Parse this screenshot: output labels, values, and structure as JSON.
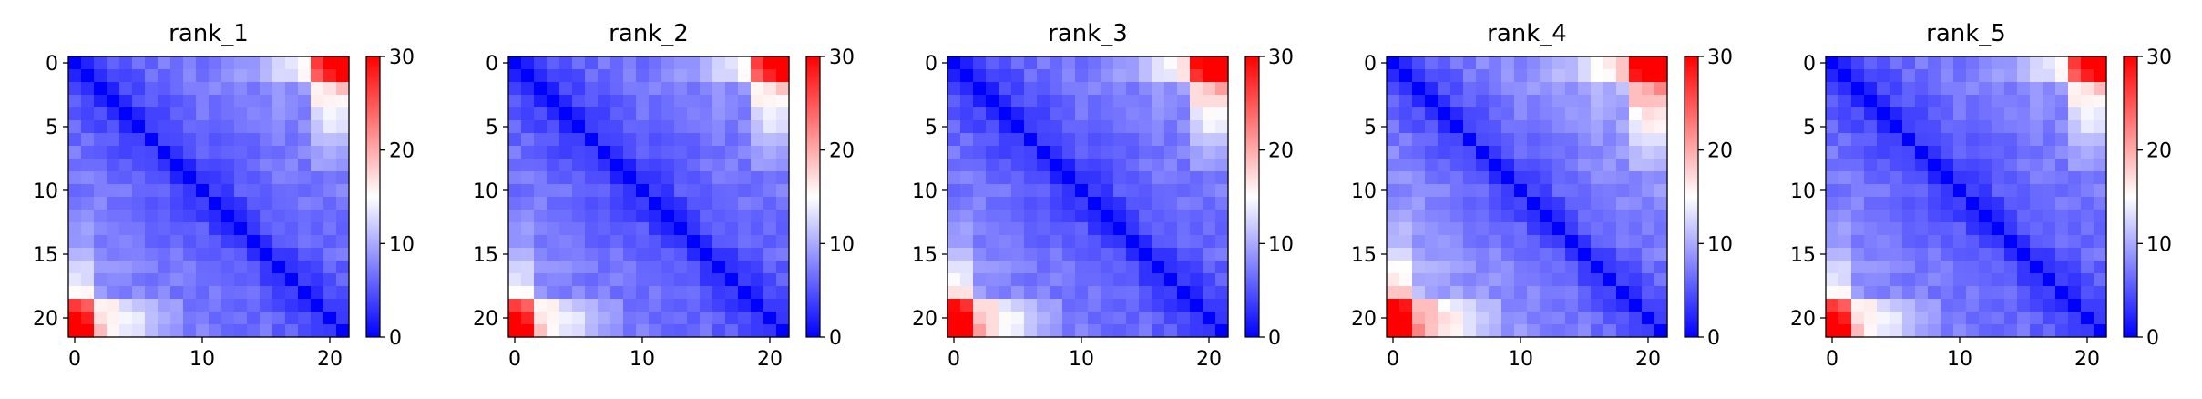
{
  "chart_data": [
    {
      "type": "heatmap",
      "title": "rank_1",
      "n": 22,
      "xlim": [
        0,
        21
      ],
      "ylim": [
        21,
        0
      ],
      "xticks": [
        0,
        10,
        20
      ],
      "yticks": [
        0,
        5,
        10,
        15,
        20
      ],
      "colorbar": {
        "range": [
          0,
          30
        ],
        "ticks": [
          0,
          10,
          20,
          30
        ],
        "colormap": "bwr"
      },
      "profile": [
        0,
        3.2,
        4.2,
        5.0,
        5.6,
        6.0,
        6.3,
        6.6,
        6.8,
        7.0,
        7.2,
        7.4,
        7.6,
        7.8,
        8.0,
        8.3,
        8.7,
        9.2,
        10.0,
        11.5,
        14.0,
        17.0
      ],
      "edge_boost": {
        "top": 8,
        "bottom": 10
      }
    },
    {
      "type": "heatmap",
      "title": "rank_2",
      "n": 22,
      "xlim": [
        0,
        21
      ],
      "ylim": [
        21,
        0
      ],
      "xticks": [
        0,
        10,
        20
      ],
      "yticks": [
        0,
        5,
        10,
        15,
        20
      ],
      "colorbar": {
        "range": [
          0,
          30
        ],
        "ticks": [
          0,
          10,
          20,
          30
        ],
        "colormap": "bwr"
      },
      "profile": [
        0,
        3.0,
        4.0,
        4.8,
        5.4,
        5.8,
        6.1,
        6.4,
        6.6,
        6.8,
        7.0,
        7.2,
        7.4,
        7.6,
        7.8,
        8.1,
        8.5,
        9.0,
        9.8,
        11.2,
        13.5,
        16.0
      ],
      "edge_boost": {
        "top": 8,
        "bottom": 10
      }
    },
    {
      "type": "heatmap",
      "title": "rank_3",
      "n": 22,
      "xlim": [
        0,
        21
      ],
      "ylim": [
        21,
        0
      ],
      "xticks": [
        0,
        10,
        20
      ],
      "yticks": [
        0,
        5,
        10,
        15,
        20
      ],
      "colorbar": {
        "range": [
          0,
          30
        ],
        "ticks": [
          0,
          10,
          20,
          30
        ],
        "colormap": "bwr"
      },
      "profile": [
        0,
        3.0,
        4.0,
        4.8,
        5.4,
        5.9,
        6.2,
        6.5,
        6.7,
        6.9,
        7.1,
        7.3,
        7.5,
        7.8,
        8.1,
        8.5,
        9.0,
        9.8,
        11.0,
        12.5,
        15.0,
        18.0
      ],
      "edge_boost": {
        "top": 9,
        "bottom": 11
      }
    },
    {
      "type": "heatmap",
      "title": "rank_4",
      "n": 22,
      "xlim": [
        0,
        21
      ],
      "ylim": [
        21,
        0
      ],
      "xticks": [
        0,
        10,
        20
      ],
      "yticks": [
        0,
        5,
        10,
        15,
        20
      ],
      "colorbar": {
        "range": [
          0,
          30
        ],
        "ticks": [
          0,
          10,
          20,
          30
        ],
        "colormap": "bwr"
      },
      "profile": [
        0,
        3.5,
        4.6,
        5.5,
        6.2,
        6.7,
        7.1,
        7.5,
        7.8,
        8.1,
        8.4,
        8.7,
        9.0,
        9.3,
        9.7,
        10.2,
        10.8,
        11.5,
        12.5,
        14.0,
        16.5,
        19.0
      ],
      "edge_boost": {
        "top": 9,
        "bottom": 11
      }
    },
    {
      "type": "heatmap",
      "title": "rank_5",
      "n": 22,
      "xlim": [
        0,
        21
      ],
      "ylim": [
        21,
        0
      ],
      "xticks": [
        0,
        10,
        20
      ],
      "yticks": [
        0,
        5,
        10,
        15,
        20
      ],
      "colorbar": {
        "range": [
          0,
          30
        ],
        "ticks": [
          0,
          10,
          20,
          30
        ],
        "colormap": "bwr"
      },
      "profile": [
        0,
        3.2,
        4.2,
        5.0,
        5.6,
        6.0,
        6.3,
        6.6,
        6.8,
        7.0,
        7.2,
        7.4,
        7.6,
        7.8,
        8.0,
        8.3,
        8.7,
        9.2,
        10.0,
        11.5,
        14.0,
        17.0
      ],
      "edge_boost": {
        "top": 8,
        "bottom": 10
      }
    }
  ]
}
